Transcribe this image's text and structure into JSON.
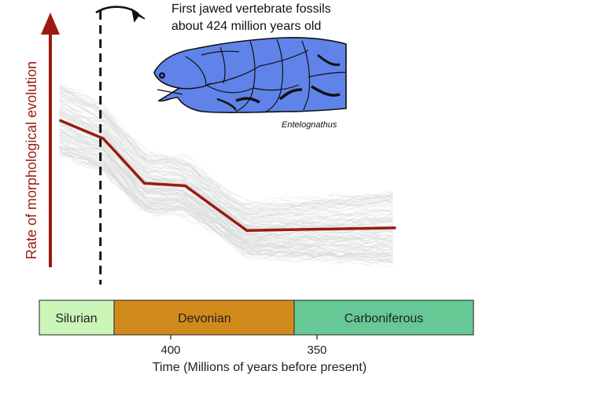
{
  "chart_data": {
    "type": "line",
    "xlabel": "Time (Millions of years before present)",
    "ylabel": "Rate of morphological evolution",
    "x_direction": "reversed",
    "x_ticks": [
      400,
      350
    ],
    "series": [
      {
        "x": [
          438,
          423,
          409,
          395,
          374,
          323
        ],
        "y": [
          0.62,
          0.55,
          0.38,
          0.37,
          0.2,
          0.21
        ],
        "color": "#9a1b10"
      }
    ],
    "ylim": [
      0,
      1
    ],
    "periods": [
      {
        "name": "Silurian",
        "start": 444,
        "end": 419,
        "color": "#ccf5b8"
      },
      {
        "name": "Devonian",
        "start": 419,
        "end": 359,
        "color": "#d08a1c"
      },
      {
        "name": "Carboniferous",
        "start": 359,
        "end": 299,
        "color": "#66c995"
      }
    ],
    "marker": {
      "x": 424,
      "style": "dashed"
    },
    "annotation": {
      "line1": "First jawed vertebrate fossils",
      "line2": "about 424 million years old"
    },
    "illustration_caption": "Entelognathus"
  },
  "colors": {
    "trend": "#9a1b10",
    "arrow": "#9a1b10",
    "fish": "#5f83e8",
    "envelope": "#d5d8d7"
  },
  "icons": {
    "fish": "placoderm-fish-icon",
    "arrow": "curved-arrow-icon"
  }
}
